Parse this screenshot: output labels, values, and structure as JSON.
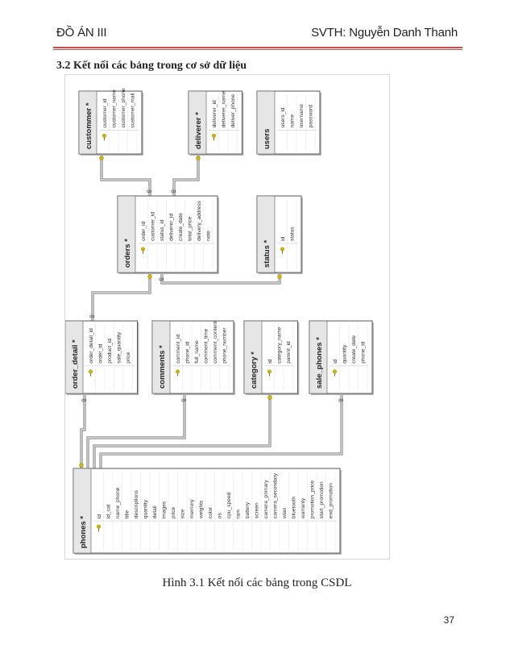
{
  "header": {
    "left": "ĐỒ ÁN III",
    "right": "SVTH: Nguyễn Danh Thanh"
  },
  "section_title": "3.2 Kết nối các bảng trong cơ sở dữ liệu",
  "caption": "Hình 3.1 Kết nối các bảng trong CSDL",
  "page_number": "37",
  "colors": {
    "header_rule": "#c0504d",
    "key_icon": "#d4b800",
    "table_header": "#e6e6e6",
    "table_border": "#555555"
  },
  "diagram": {
    "tables": [
      {
        "id": "customer",
        "title": "custommer *",
        "columns": [
          "customer_id",
          "customer_name",
          "customer_phone",
          "customer_mail"
        ],
        "key_index": 0
      },
      {
        "id": "deliverer",
        "title": "deliverer *",
        "columns": [
          "deliverer_id",
          "deliverer_name",
          "deliver_phone"
        ],
        "key_index": 0
      },
      {
        "id": "users",
        "title": "users",
        "columns": [
          "users_id",
          "name",
          "username",
          "password"
        ],
        "key_index": -1
      },
      {
        "id": "orders",
        "title": "orders *",
        "columns": [
          "order_id",
          "customer_id",
          "status_id",
          "deliverer_id",
          "create_date",
          "total_price",
          "delivery_address",
          "note"
        ],
        "key_index": 0
      },
      {
        "id": "status",
        "title": "status *",
        "columns": [
          "id",
          "status"
        ],
        "key_index": 0
      },
      {
        "id": "order_detail",
        "title": "order_detail *",
        "columns": [
          "order_detail_id",
          "order_id",
          "product_id",
          "sale_quantity",
          "price"
        ],
        "key_index": 0
      },
      {
        "id": "comments",
        "title": "comments *",
        "columns": [
          "comment_id",
          "phone_id",
          "full_name",
          "comment_time",
          "comment_content",
          "phone_number"
        ],
        "key_index": 0
      },
      {
        "id": "category",
        "title": "category *",
        "columns": [
          "id",
          "category_name",
          "parent_id"
        ],
        "key_index": 0
      },
      {
        "id": "sale_phones",
        "title": "sale_phones *",
        "columns": [
          "id",
          "quantity",
          "create_date",
          "phone_id"
        ],
        "key_index": 0
      },
      {
        "id": "phones",
        "title": "phones *",
        "columns": [
          "id",
          "id_cat",
          "name_phone",
          "title",
          "descriptions",
          "quantity",
          "detail",
          "images",
          "price",
          "size",
          "memory",
          "weights",
          "color",
          "os",
          "cpu_speed",
          "ram",
          "battery",
          "screen",
          "camera_primary",
          "camera_secondary",
          "wlan",
          "bluetooth",
          "warranty",
          "promotion_price",
          "start_promotion",
          "end_promotion"
        ],
        "key_index": 0
      }
    ]
  }
}
